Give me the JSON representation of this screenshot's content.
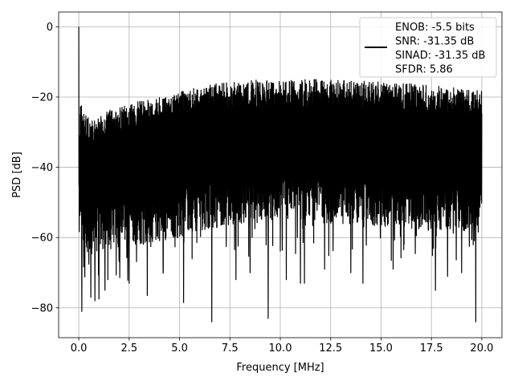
{
  "chart_data": {
    "type": "line",
    "title": "",
    "xlabel": "Frequency [MHz]",
    "ylabel": "PSD [dB]",
    "xlim": [
      -1.0,
      21.0
    ],
    "ylim": [
      -88.5,
      4.2
    ],
    "x_ticks": [
      0.0,
      2.5,
      5.0,
      7.5,
      10.0,
      12.5,
      15.0,
      17.5,
      20.0
    ],
    "x_tick_labels": [
      "0.0",
      "2.5",
      "5.0",
      "7.5",
      "10.0",
      "12.5",
      "15.0",
      "17.5",
      "20.0"
    ],
    "y_ticks": [
      0,
      -20,
      -40,
      -60,
      -80
    ],
    "y_tick_labels": [
      "0",
      "−20",
      "−40",
      "−60",
      "−80"
    ],
    "grid": true,
    "legend_position": "top-right",
    "legend_entries": [
      "ENOB: -5.5 bits",
      "SNR: -31.35 dB",
      "SINAD: -31.35 dB",
      "SFDR: 5.86"
    ],
    "series": [
      {
        "name": "ENOB: -5.5 bits\nSNR: -31.35 dB\nSINAD: -31.35 dB\nSFDR: 5.86",
        "color": "#000000",
        "x_range": [
          0.0,
          20.0
        ],
        "peak": {
          "x": 0.0,
          "y": 0.0
        },
        "upper_envelope": [
          [
            0.0,
            -29
          ],
          [
            0.1,
            -20.5
          ],
          [
            0.3,
            -25
          ],
          [
            0.5,
            -26
          ],
          [
            1.0,
            -25.5
          ],
          [
            1.3,
            -24
          ],
          [
            2.0,
            -23
          ],
          [
            2.5,
            -22
          ],
          [
            3.0,
            -21
          ],
          [
            4.0,
            -20
          ],
          [
            5.0,
            -18.5
          ],
          [
            6.0,
            -17
          ],
          [
            7.0,
            -16
          ],
          [
            8.0,
            -15.5
          ],
          [
            9.0,
            -15
          ],
          [
            10.0,
            -15
          ],
          [
            11.0,
            -15
          ],
          [
            12.0,
            -15
          ],
          [
            13.0,
            -15
          ],
          [
            14.0,
            -15.3
          ],
          [
            15.0,
            -15.5
          ],
          [
            16.0,
            -16
          ],
          [
            17.0,
            -16.5
          ],
          [
            18.0,
            -17
          ],
          [
            19.0,
            -17.5
          ],
          [
            20.0,
            -18
          ]
        ],
        "lower_envelope": [
          [
            0.0,
            -60
          ],
          [
            0.2,
            -66
          ],
          [
            0.5,
            -65
          ],
          [
            1.0,
            -64
          ],
          [
            2.0,
            -63
          ],
          [
            3.0,
            -62
          ],
          [
            4.0,
            -61
          ],
          [
            5.0,
            -60
          ],
          [
            6.0,
            -58
          ],
          [
            7.0,
            -57
          ],
          [
            8.0,
            -56
          ],
          [
            9.0,
            -55
          ],
          [
            10.0,
            -55
          ],
          [
            11.0,
            -55
          ],
          [
            12.0,
            -56
          ],
          [
            13.0,
            -56
          ],
          [
            14.0,
            -57
          ],
          [
            15.0,
            -57
          ],
          [
            16.0,
            -57
          ],
          [
            17.0,
            -58
          ],
          [
            18.0,
            -58
          ],
          [
            19.0,
            -58
          ],
          [
            20.0,
            -58
          ]
        ],
        "deep_dips": [
          [
            0.15,
            -81
          ],
          [
            0.6,
            -77
          ],
          [
            0.8,
            -78
          ],
          [
            1.0,
            -77.5
          ],
          [
            1.3,
            -75
          ],
          [
            2.5,
            -73
          ],
          [
            3.4,
            -76.5
          ],
          [
            5.2,
            -78.5
          ],
          [
            6.6,
            -84
          ],
          [
            7.8,
            -72
          ],
          [
            8.5,
            -70
          ],
          [
            9.4,
            -83
          ],
          [
            10.3,
            -72
          ],
          [
            11.0,
            -73
          ],
          [
            11.2,
            -73
          ],
          [
            12.2,
            -69
          ],
          [
            13.5,
            -70
          ],
          [
            14.1,
            -73
          ],
          [
            15.6,
            -69
          ],
          [
            17.7,
            -75
          ],
          [
            18.3,
            -71
          ],
          [
            19.0,
            -70
          ],
          [
            19.7,
            -84
          ]
        ]
      }
    ]
  }
}
